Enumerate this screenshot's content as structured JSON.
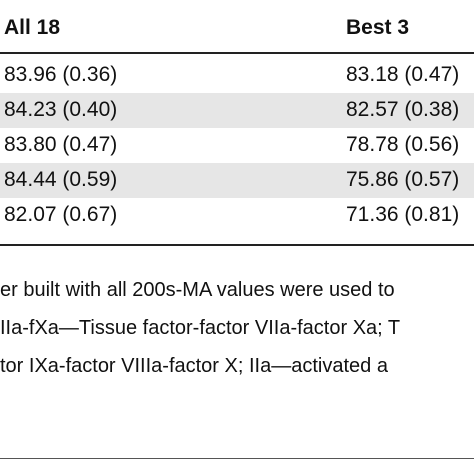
{
  "table": {
    "headers": [
      "All 18",
      "Best 3"
    ],
    "rows": [
      [
        "83.96 (0.36)",
        "83.18 (0.47)"
      ],
      [
        "84.23 (0.40)",
        "82.57 (0.38)"
      ],
      [
        "83.80 (0.47)",
        "78.78 (0.56)"
      ],
      [
        "84.44 (0.59)",
        "75.86 (0.57)"
      ],
      [
        "82.07 (0.67)",
        "71.36 (0.81)"
      ]
    ]
  },
  "footnote": {
    "lines": [
      "er built with all 200s-MA values were used to",
      "IIa-fXa—Tissue factor-factor VIIa-factor Xa; T",
      "tor IXa-factor VIIIa-factor X; IIa—activated a"
    ]
  }
}
